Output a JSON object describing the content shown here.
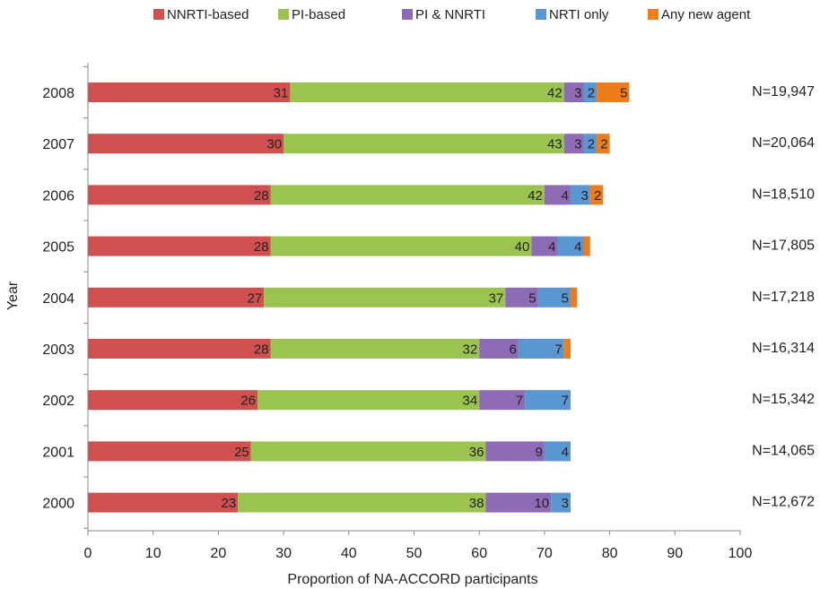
{
  "chart_data": {
    "type": "bar",
    "orientation": "horizontal",
    "stacked": true,
    "title": "",
    "xlabel": "Proportion of NA-ACCORD participants",
    "ylabel": "Year",
    "xlim": [
      0,
      100
    ],
    "xticks": [
      "0",
      "10",
      "20",
      "30",
      "40",
      "50",
      "60",
      "70",
      "80",
      "90",
      "100"
    ],
    "legend_position": "top",
    "categories": [
      "2008",
      "2007",
      "2006",
      "2005",
      "2004",
      "2003",
      "2002",
      "2001",
      "2000"
    ],
    "n_labels": [
      "N=19,947",
      "N=20,064",
      "N=18,510",
      "N=17,805",
      "N=17,218",
      "N=16,314",
      "N=15,342",
      "N=14,065",
      "N=12,672"
    ],
    "series": [
      {
        "name": "NNRTI-based",
        "color": "#d05050",
        "values": [
          31,
          30,
          28,
          28,
          27,
          28,
          26,
          25,
          23
        ],
        "labels": [
          "31",
          "30",
          "28",
          "28",
          "27",
          "28",
          "26",
          "25",
          "23"
        ]
      },
      {
        "name": "PI-based",
        "color": "#9bc34f",
        "values": [
          42,
          43,
          42,
          40,
          37,
          32,
          34,
          36,
          38
        ],
        "labels": [
          "42",
          "43",
          "42",
          "40",
          "37",
          "32",
          "34",
          "36",
          "38"
        ]
      },
      {
        "name": "PI & NNRTI",
        "color": "#8e6bb5",
        "values": [
          3,
          3,
          4,
          4,
          5,
          6,
          7,
          9,
          10
        ],
        "labels": [
          "3",
          "3",
          "4",
          "4",
          "5",
          "6",
          "7",
          "9",
          "10"
        ]
      },
      {
        "name": "NRTI only",
        "color": "#5a97d2",
        "values": [
          2,
          2,
          3,
          4,
          5,
          7,
          7,
          4,
          3
        ],
        "labels": [
          "2",
          "2",
          "3",
          "4",
          "5",
          "7",
          "7",
          "4",
          "3"
        ]
      },
      {
        "name": "Any new agent",
        "color": "#ef7c1a",
        "values": [
          5,
          2,
          2,
          1,
          1,
          1,
          0,
          0,
          0
        ],
        "labels": [
          "5",
          "2",
          "2",
          "",
          "",
          "",
          "",
          "",
          ""
        ]
      }
    ]
  }
}
